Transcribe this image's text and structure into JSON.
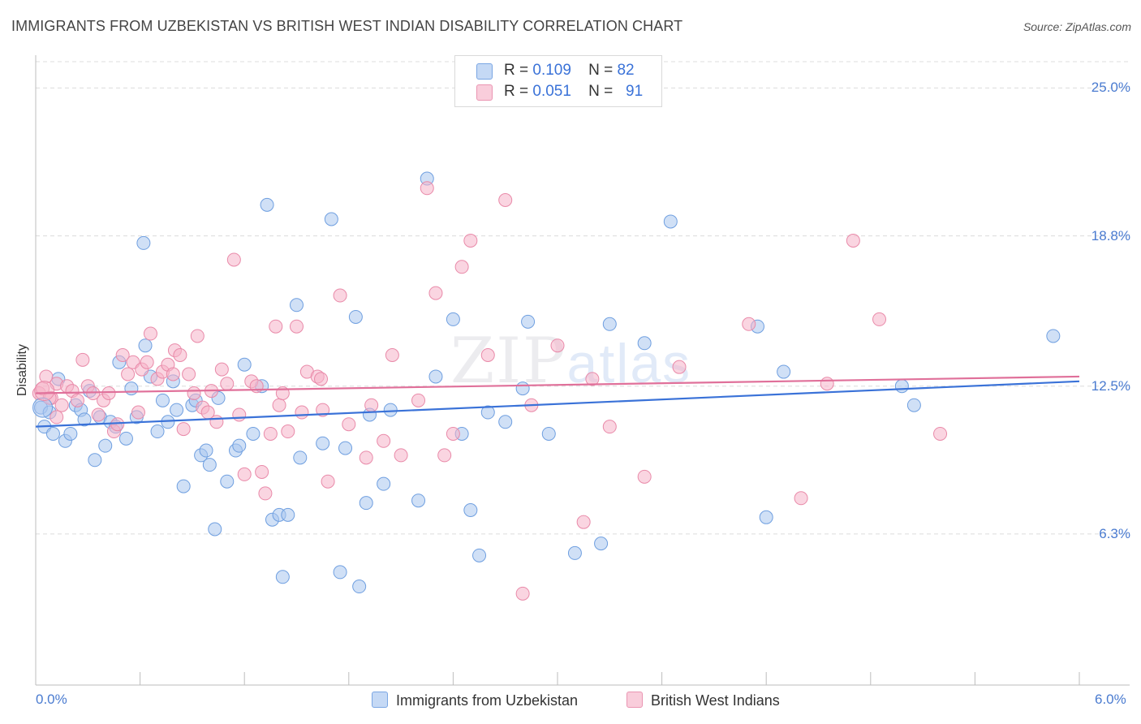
{
  "title": "IMMIGRANTS FROM UZBEKISTAN VS BRITISH WEST INDIAN DISABILITY CORRELATION CHART",
  "source": "Source: ZipAtlas.com",
  "watermark": {
    "zip": "ZIP",
    "atlas": "atlas"
  },
  "legend": {
    "rows": [
      {
        "r_label": "R =",
        "r_value": "0.109",
        "n_label": "N =",
        "n_value": "82",
        "color": "#a9c6ef"
      },
      {
        "r_label": "R =",
        "r_value": "0.051",
        "n_label": "N =",
        "n_value": "91",
        "color": "#f5b3c8"
      }
    ]
  },
  "bottom_legend": {
    "series1": "Immigrants from Uzbekistan",
    "series2": "British West Indians"
  },
  "chart_data": {
    "type": "scatter",
    "title": "IMMIGRANTS FROM UZBEKISTAN VS BRITISH WEST INDIAN DISABILITY CORRELATION CHART",
    "xlabel": "",
    "ylabel": "Disability",
    "xlim": [
      0.0,
      6.0
    ],
    "ylim": [
      0.0,
      26.0
    ],
    "x_tick_labels": [
      "0.0%",
      "6.0%"
    ],
    "y_ticks": [
      6.3,
      12.5,
      18.8,
      25.0
    ],
    "y_tick_labels": [
      "6.3%",
      "12.5%",
      "18.8%",
      "25.0%"
    ],
    "grid": true,
    "legend_placement": "top-center",
    "series": [
      {
        "name": "Immigrants from Uzbekistan",
        "color": "#a9c6ef",
        "stroke": "#6f9fe0",
        "trend_color": "#3a72d8",
        "trend": {
          "x": [
            0.0,
            6.0
          ],
          "y": [
            10.8,
            12.7
          ]
        },
        "points": [
          [
            0.03,
            11.6
          ],
          [
            0.05,
            10.8
          ],
          [
            0.08,
            11.4
          ],
          [
            0.1,
            10.5
          ],
          [
            0.13,
            12.8
          ],
          [
            0.17,
            10.2
          ],
          [
            0.2,
            10.5
          ],
          [
            0.23,
            11.7
          ],
          [
            0.26,
            11.5
          ],
          [
            0.28,
            11.1
          ],
          [
            0.31,
            12.3
          ],
          [
            0.34,
            9.4
          ],
          [
            0.37,
            11.2
          ],
          [
            0.4,
            10.0
          ],
          [
            0.43,
            11.0
          ],
          [
            0.46,
            10.8
          ],
          [
            0.48,
            13.5
          ],
          [
            0.52,
            10.3
          ],
          [
            0.55,
            12.4
          ],
          [
            0.58,
            11.2
          ],
          [
            0.62,
            18.5
          ],
          [
            0.63,
            14.2
          ],
          [
            0.66,
            12.9
          ],
          [
            0.7,
            10.6
          ],
          [
            0.73,
            11.9
          ],
          [
            0.76,
            11.0
          ],
          [
            0.79,
            12.7
          ],
          [
            0.81,
            11.5
          ],
          [
            0.85,
            8.3
          ],
          [
            0.9,
            11.7
          ],
          [
            0.92,
            11.9
          ],
          [
            0.95,
            9.6
          ],
          [
            0.98,
            9.8
          ],
          [
            1.0,
            9.2
          ],
          [
            1.03,
            6.5
          ],
          [
            1.05,
            12.0
          ],
          [
            1.1,
            8.5
          ],
          [
            1.15,
            9.8
          ],
          [
            1.17,
            10.0
          ],
          [
            1.2,
            13.4
          ],
          [
            1.25,
            10.5
          ],
          [
            1.3,
            12.5
          ],
          [
            1.33,
            20.1
          ],
          [
            1.36,
            6.9
          ],
          [
            1.4,
            7.1
          ],
          [
            1.42,
            4.5
          ],
          [
            1.45,
            7.1
          ],
          [
            1.5,
            15.9
          ],
          [
            1.52,
            9.5
          ],
          [
            1.65,
            10.1
          ],
          [
            1.7,
            19.5
          ],
          [
            1.75,
            4.7
          ],
          [
            1.78,
            9.9
          ],
          [
            1.84,
            15.4
          ],
          [
            1.86,
            4.1
          ],
          [
            1.9,
            7.6
          ],
          [
            1.92,
            11.3
          ],
          [
            2.0,
            8.4
          ],
          [
            2.04,
            11.5
          ],
          [
            2.2,
            7.7
          ],
          [
            2.25,
            21.2
          ],
          [
            2.3,
            12.9
          ],
          [
            2.4,
            15.3
          ],
          [
            2.45,
            10.5
          ],
          [
            2.5,
            7.3
          ],
          [
            2.55,
            5.4
          ],
          [
            2.6,
            11.4
          ],
          [
            2.7,
            11.0
          ],
          [
            2.8,
            12.4
          ],
          [
            2.83,
            15.2
          ],
          [
            2.95,
            10.5
          ],
          [
            3.1,
            5.5
          ],
          [
            3.25,
            5.9
          ],
          [
            3.3,
            15.1
          ],
          [
            3.5,
            14.3
          ],
          [
            3.65,
            19.4
          ],
          [
            4.15,
            15.0
          ],
          [
            4.2,
            7.0
          ],
          [
            4.3,
            13.1
          ],
          [
            4.98,
            12.5
          ],
          [
            5.05,
            11.7
          ],
          [
            5.85,
            14.6
          ]
        ]
      },
      {
        "name": "British West Indians",
        "color": "#f5b3c8",
        "stroke": "#e98aa9",
        "trend_color": "#e0709a",
        "trend": {
          "x": [
            0.0,
            6.0
          ],
          "y": [
            12.2,
            12.9
          ]
        },
        "points": [
          [
            0.02,
            12.2
          ],
          [
            0.04,
            12.4
          ],
          [
            0.06,
            12.9
          ],
          [
            0.09,
            12.0
          ],
          [
            0.12,
            12.6
          ],
          [
            0.15,
            11.7
          ],
          [
            0.18,
            12.5
          ],
          [
            0.21,
            12.3
          ],
          [
            0.24,
            11.9
          ],
          [
            0.27,
            13.6
          ],
          [
            0.3,
            12.5
          ],
          [
            0.33,
            12.2
          ],
          [
            0.36,
            11.3
          ],
          [
            0.39,
            11.9
          ],
          [
            0.42,
            12.2
          ],
          [
            0.45,
            10.6
          ],
          [
            0.47,
            10.9
          ],
          [
            0.5,
            13.8
          ],
          [
            0.53,
            13.0
          ],
          [
            0.56,
            13.5
          ],
          [
            0.59,
            11.4
          ],
          [
            0.61,
            13.2
          ],
          [
            0.64,
            13.5
          ],
          [
            0.66,
            14.7
          ],
          [
            0.7,
            12.8
          ],
          [
            0.73,
            13.1
          ],
          [
            0.76,
            13.4
          ],
          [
            0.79,
            13.0
          ],
          [
            0.8,
            14.0
          ],
          [
            0.83,
            13.8
          ],
          [
            0.85,
            10.7
          ],
          [
            0.88,
            13.0
          ],
          [
            0.91,
            12.2
          ],
          [
            0.93,
            14.6
          ],
          [
            0.96,
            11.6
          ],
          [
            0.99,
            11.4
          ],
          [
            1.01,
            12.3
          ],
          [
            1.04,
            11.0
          ],
          [
            1.07,
            13.2
          ],
          [
            1.1,
            12.6
          ],
          [
            1.14,
            17.8
          ],
          [
            1.17,
            11.3
          ],
          [
            1.2,
            8.8
          ],
          [
            1.24,
            12.7
          ],
          [
            1.27,
            12.5
          ],
          [
            1.3,
            8.9
          ],
          [
            1.32,
            8.0
          ],
          [
            1.35,
            10.5
          ],
          [
            1.38,
            15.0
          ],
          [
            1.4,
            11.7
          ],
          [
            1.42,
            12.2
          ],
          [
            1.45,
            10.6
          ],
          [
            1.5,
            15.0
          ],
          [
            1.53,
            11.4
          ],
          [
            1.56,
            13.1
          ],
          [
            1.62,
            12.9
          ],
          [
            1.64,
            12.8
          ],
          [
            1.65,
            11.5
          ],
          [
            1.68,
            8.5
          ],
          [
            1.75,
            16.3
          ],
          [
            1.8,
            10.9
          ],
          [
            1.9,
            9.5
          ],
          [
            1.93,
            11.7
          ],
          [
            2.0,
            10.2
          ],
          [
            2.05,
            13.8
          ],
          [
            2.1,
            9.6
          ],
          [
            2.2,
            11.9
          ],
          [
            2.25,
            20.8
          ],
          [
            2.3,
            16.4
          ],
          [
            2.35,
            9.6
          ],
          [
            2.4,
            10.5
          ],
          [
            2.45,
            17.5
          ],
          [
            2.5,
            18.6
          ],
          [
            2.6,
            13.8
          ],
          [
            2.7,
            20.3
          ],
          [
            2.8,
            3.8
          ],
          [
            2.85,
            11.7
          ],
          [
            3.0,
            14.2
          ],
          [
            3.15,
            6.8
          ],
          [
            3.2,
            12.8
          ],
          [
            3.3,
            10.8
          ],
          [
            3.5,
            8.7
          ],
          [
            3.7,
            13.3
          ],
          [
            4.1,
            15.1
          ],
          [
            4.4,
            7.8
          ],
          [
            4.55,
            12.6
          ],
          [
            4.7,
            18.6
          ],
          [
            4.85,
            15.3
          ],
          [
            5.2,
            10.5
          ],
          [
            0.08,
            12.0
          ],
          [
            0.12,
            11.2
          ]
        ]
      }
    ]
  }
}
